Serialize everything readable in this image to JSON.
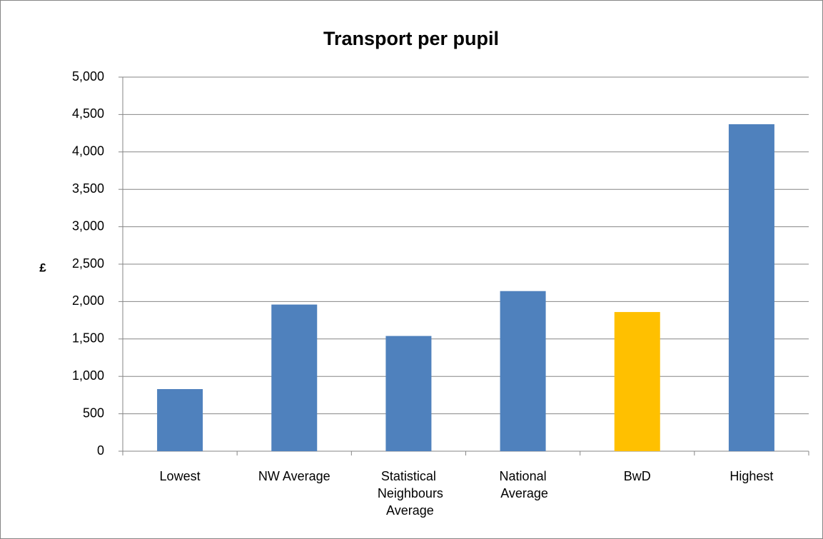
{
  "chart_data": {
    "type": "bar",
    "title": "Transport per pupil",
    "y_label": "£",
    "categories": [
      "Lowest",
      "NW Average",
      "Statistical Neighbours Average",
      "National Average",
      "BwD",
      "Highest"
    ],
    "values": [
      830,
      1960,
      1540,
      2140,
      1860,
      4370
    ],
    "colors": [
      "#4f81bd",
      "#4f81bd",
      "#4f81bd",
      "#4f81bd",
      "#ffc000",
      "#4f81bd"
    ],
    "ylim": [
      0,
      5000
    ],
    "yticks": [
      0,
      500,
      {
        "value": 1000,
        "label": "1,000"
      },
      {
        "value": 1500,
        "label": "1,500"
      },
      {
        "value": 2000,
        "label": "2,000"
      },
      {
        "value": 2500,
        "label": "2,500"
      },
      {
        "value": 3000,
        "label": "3,000"
      },
      {
        "value": 3500,
        "label": "3,500"
      },
      {
        "value": 4000,
        "label": "4,000"
      },
      {
        "value": 4500,
        "label": "4,500"
      },
      {
        "value": 5000,
        "label": "5,000"
      }
    ],
    "grid": true
  }
}
